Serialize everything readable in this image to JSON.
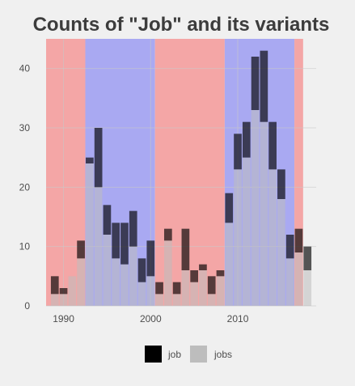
{
  "chart_data": {
    "type": "bar",
    "title": "Counts of \"Job\" and its variants",
    "xlabel": "",
    "ylabel": "",
    "x_ticks": [
      1990,
      2000,
      2010
    ],
    "y_ticks": [
      0,
      10,
      20,
      30,
      40
    ],
    "xlim": [
      1988,
      2019
    ],
    "ylim": [
      0,
      45
    ],
    "grid": true,
    "stacked": true,
    "legend_position": "bottom",
    "categories": [
      1989,
      1990,
      1991,
      1992,
      1993,
      1994,
      1995,
      1996,
      1997,
      1998,
      1999,
      2000,
      2001,
      2002,
      2003,
      2004,
      2005,
      2006,
      2007,
      2008,
      2009,
      2010,
      2011,
      2012,
      2013,
      2014,
      2015,
      2016,
      2017,
      2018
    ],
    "series": [
      {
        "name": "job",
        "color": "#000000",
        "values": [
          3,
          1,
          0,
          3,
          1,
          10,
          5,
          6,
          7,
          6,
          4,
          6,
          2,
          2,
          2,
          7,
          2,
          1,
          3,
          1,
          5,
          6,
          6,
          9,
          12,
          8,
          5,
          4,
          4,
          4
        ]
      },
      {
        "name": "jobs",
        "color": "#bdbdbd",
        "values": [
          2,
          2,
          5,
          8,
          24,
          20,
          12,
          8,
          7,
          10,
          4,
          5,
          2,
          11,
          2,
          6,
          4,
          6,
          2,
          5,
          14,
          23,
          25,
          33,
          31,
          23,
          18,
          8,
          9,
          6
        ]
      }
    ],
    "background_bands": [
      {
        "from": 1988,
        "to": 1992.5,
        "color": "#f4a6a6"
      },
      {
        "from": 1992.5,
        "to": 2000.5,
        "color": "#a9a9f2"
      },
      {
        "from": 2000.5,
        "to": 2008.5,
        "color": "#f4a6a6"
      },
      {
        "from": 2008.5,
        "to": 2016.5,
        "color": "#a9a9f2"
      },
      {
        "from": 2016.5,
        "to": 2017.5,
        "color": "#f4a6a6"
      }
    ]
  }
}
